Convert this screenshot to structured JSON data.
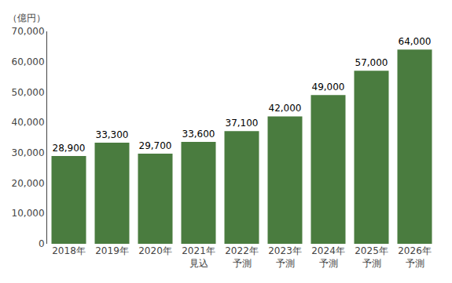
{
  "chart_data": {
    "type": "bar",
    "ylabel": "（億円）",
    "categories": [
      "2018年",
      "2019年",
      "2020年",
      "2021年\n見込",
      "2022年\n予測",
      "2023年\n予測",
      "2024年\n予測",
      "2025年\n予測",
      "2026年\n予測"
    ],
    "values": [
      28900,
      33300,
      29700,
      33600,
      37100,
      42000,
      49000,
      57000,
      64000
    ],
    "value_labels": [
      "28,900",
      "33,300",
      "29,700",
      "33,600",
      "37,100",
      "42,000",
      "49,000",
      "57,000",
      "64,000"
    ],
    "data_labels": true,
    "color": "#4a7c3f",
    "ylim": [
      0,
      70000
    ],
    "yticks": [
      0,
      {
        "value": 10000,
        "label": "10,000"
      },
      {
        "value": 20000,
        "label": "20,000"
      },
      {
        "value": 30000,
        "label": "30,000"
      },
      {
        "value": 40000,
        "label": "40,000"
      },
      {
        "value": 50000,
        "label": "50,000"
      },
      {
        "value": 60000,
        "label": "60,000"
      },
      {
        "value": 70000,
        "label": "70,000"
      }
    ],
    "grid": false
  }
}
